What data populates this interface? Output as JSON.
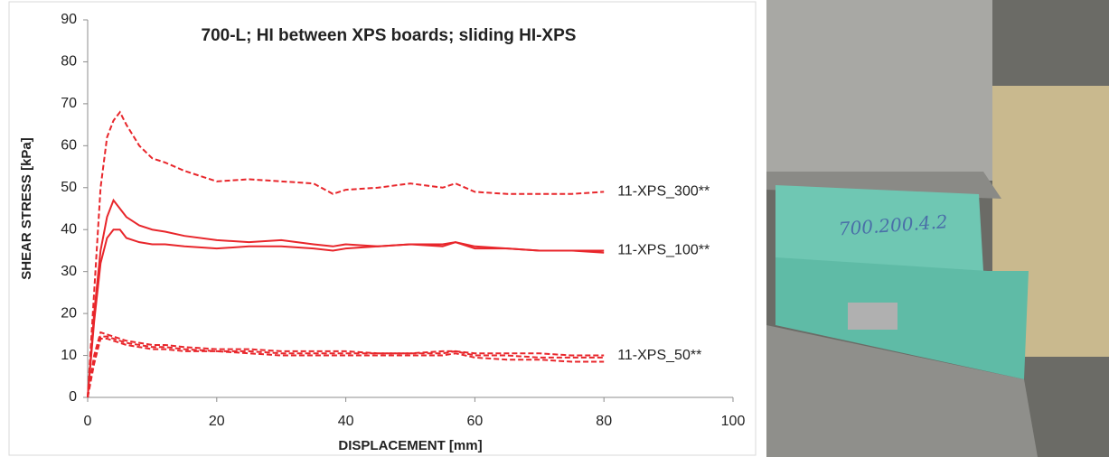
{
  "chart_data": {
    "type": "line",
    "title": "700-L; HI between XPS boards; sliding HI-XPS",
    "x_label": "DISPLACEMENT [mm]",
    "y_label": "SHEAR STRESS [kPa]",
    "x": [
      0,
      1,
      2,
      3,
      4,
      5,
      6,
      8,
      10,
      12,
      15,
      20,
      25,
      30,
      35,
      38,
      40,
      45,
      50,
      55,
      57,
      60,
      65,
      70,
      75,
      80
    ],
    "xlim": [
      0,
      100
    ],
    "xticks": [
      0,
      20,
      40,
      60,
      80,
      100
    ],
    "ylim": [
      0,
      90
    ],
    "yticks": [
      0,
      10,
      20,
      30,
      40,
      50,
      60,
      70,
      80,
      90
    ],
    "series": [
      {
        "name": "11-XPS_300**",
        "color": "#e8262b",
        "dashed": true,
        "lines": [
          [
            0,
            25,
            50,
            62,
            66,
            68,
            65,
            60,
            57,
            56,
            54,
            51.5,
            52,
            51.5,
            51,
            48.5,
            49.5,
            50,
            51,
            50,
            51,
            49,
            48.5,
            48.5,
            48.5,
            49
          ]
        ]
      },
      {
        "name": "11-XPS_100**",
        "color": "#e8262b",
        "dashed": false,
        "lines": [
          [
            0,
            20,
            35,
            43,
            47,
            45,
            43,
            41,
            40,
            39.5,
            38.5,
            37.5,
            37,
            37.5,
            36.5,
            36,
            36.5,
            36,
            36.5,
            36,
            37,
            35.5,
            35.5,
            35,
            35,
            35
          ],
          [
            0,
            18,
            32,
            38,
            40,
            40,
            38,
            37,
            36.5,
            36.5,
            36,
            35.5,
            36,
            36,
            35.5,
            35,
            35.5,
            36,
            36.5,
            36.5,
            37,
            36,
            35.5,
            35,
            35,
            34.5
          ]
        ]
      },
      {
        "name": "11-XPS_50**",
        "color": "#e8262b",
        "dashed": true,
        "lines": [
          [
            0,
            10,
            15.5,
            15,
            14.5,
            14,
            13.5,
            13,
            12.5,
            12.5,
            12,
            11.5,
            11.5,
            11,
            11,
            11,
            11,
            10.5,
            10.5,
            11,
            11,
            10.5,
            10.5,
            10.5,
            10,
            10
          ],
          [
            0,
            9,
            14.5,
            14.5,
            14,
            13.5,
            13,
            12.5,
            12,
            12,
            11.5,
            11,
            11,
            10.5,
            10.5,
            10.5,
            10.5,
            10.5,
            10.5,
            10.5,
            11,
            10,
            10,
            9.5,
            9.5,
            9.5
          ],
          [
            0,
            8,
            14,
            14,
            13.5,
            13,
            12.5,
            12,
            11.5,
            11.5,
            11,
            11,
            10.5,
            10,
            10,
            10,
            10,
            10,
            10,
            10,
            10.5,
            9.5,
            9,
            9,
            8.5,
            8.5
          ]
        ]
      }
    ]
  },
  "photo": {
    "label": "700.200.4.2"
  }
}
